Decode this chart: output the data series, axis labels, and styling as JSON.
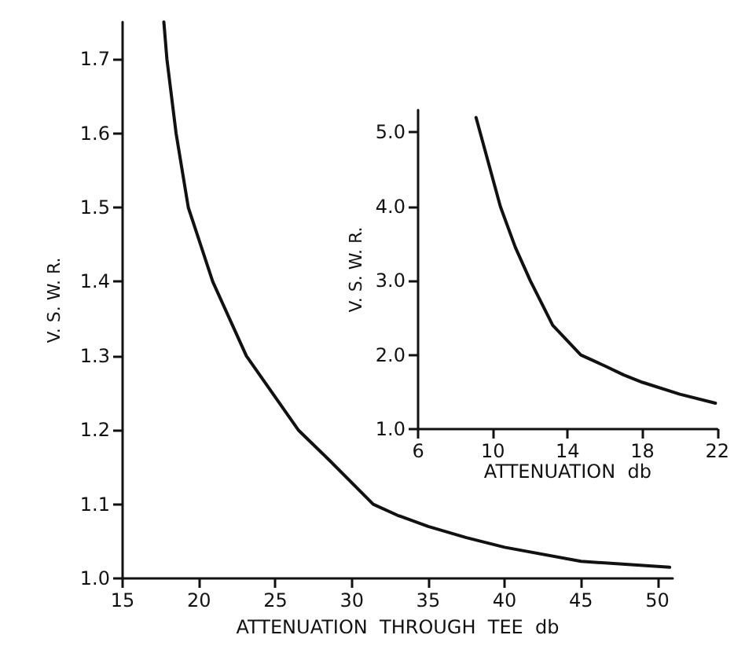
{
  "chart_data": [
    {
      "type": "line",
      "xlabel": "ATTENUATION  THROUGH  TEE  db",
      "ylabel": "V. S. W. R.",
      "x": [
        17.7,
        17.9,
        18.5,
        19.3,
        20.9,
        22,
        23.1,
        26.5,
        28.5,
        31.4,
        33,
        35,
        37.5,
        40,
        45,
        50.8
      ],
      "series": [
        {
          "color": "#111111",
          "values": [
            1.75,
            1.7,
            1.6,
            1.5,
            1.4,
            1.35,
            1.3,
            1.2,
            1.16,
            1.1,
            1.085,
            1.07,
            1.055,
            1.042,
            1.023,
            1.015
          ]
        }
      ],
      "xlim": [
        15,
        51
      ],
      "ylim": [
        1.0,
        1.75
      ],
      "xticks": [
        15,
        20,
        25,
        30,
        35,
        40,
        45,
        50
      ],
      "yticks": [
        {
          "value": 1.0,
          "label": "1.0"
        },
        1.1,
        1.2,
        1.3,
        1.4,
        1.5,
        1.6,
        1.7
      ],
      "grid": false,
      "marker": "none",
      "line_style": "solid"
    },
    {
      "type": "line",
      "xlabel": "ATTENUATION  db",
      "ylabel": "V. S. W. R.",
      "x": [
        9.1,
        10.4,
        11.2,
        12.0,
        13.2,
        14.7,
        16,
        17,
        18,
        20,
        21.9
      ],
      "series": [
        {
          "color": "#111111",
          "values": [
            5.2,
            4.0,
            3.45,
            3.0,
            2.4,
            2.0,
            1.85,
            1.73,
            1.63,
            1.47,
            1.35
          ]
        }
      ],
      "xlim": [
        6,
        22
      ],
      "ylim": [
        1.0,
        5.3
      ],
      "xticks": [
        6,
        10,
        14,
        18,
        22
      ],
      "yticks": [
        {
          "value": 1.0,
          "label": "1.0"
        },
        {
          "value": 2.0,
          "label": "2.0"
        },
        {
          "value": 3.0,
          "label": "3.0"
        },
        {
          "value": 4.0,
          "label": "4.0"
        },
        {
          "value": 5.0,
          "label": "5.0"
        }
      ],
      "grid": false,
      "marker": "none",
      "line_style": "solid"
    }
  ]
}
